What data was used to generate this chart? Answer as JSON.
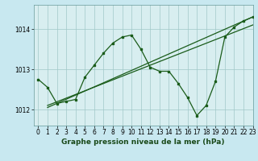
{
  "title": "Graphe pression niveau de la mer (hPa)",
  "background_color": "#c8e8f0",
  "plot_bg_color": "#d8eef0",
  "line_color": "#1a5c1a",
  "grid_color": "#a0c8c8",
  "xlim": [
    -0.5,
    23
  ],
  "ylim": [
    1011.6,
    1014.6
  ],
  "yticks": [
    1012,
    1013,
    1014
  ],
  "xticks": [
    0,
    1,
    2,
    3,
    4,
    5,
    6,
    7,
    8,
    9,
    10,
    11,
    12,
    13,
    14,
    15,
    16,
    17,
    18,
    19,
    20,
    21,
    22,
    23
  ],
  "series1_x": [
    0,
    1,
    2,
    3,
    4,
    5,
    6,
    7,
    8,
    9,
    10,
    11,
    12,
    13,
    14,
    15,
    16,
    17,
    18,
    19,
    20,
    21,
    22,
    23
  ],
  "series1_y": [
    1012.75,
    1012.55,
    1012.15,
    1012.2,
    1012.25,
    1012.8,
    1013.1,
    1013.4,
    1013.65,
    1013.8,
    1013.85,
    1013.5,
    1013.05,
    1012.95,
    1012.95,
    1012.65,
    1012.3,
    1011.85,
    1012.1,
    1012.7,
    1013.8,
    1014.05,
    1014.2,
    1014.3
  ],
  "trend1_x": [
    1,
    23
  ],
  "trend1_y": [
    1012.1,
    1014.1
  ],
  "trend2_x": [
    1,
    23
  ],
  "trend2_y": [
    1012.05,
    1014.3
  ],
  "marker_size": 2.0,
  "line_width": 0.9,
  "font_size_label": 6.5,
  "font_size_tick": 5.5
}
